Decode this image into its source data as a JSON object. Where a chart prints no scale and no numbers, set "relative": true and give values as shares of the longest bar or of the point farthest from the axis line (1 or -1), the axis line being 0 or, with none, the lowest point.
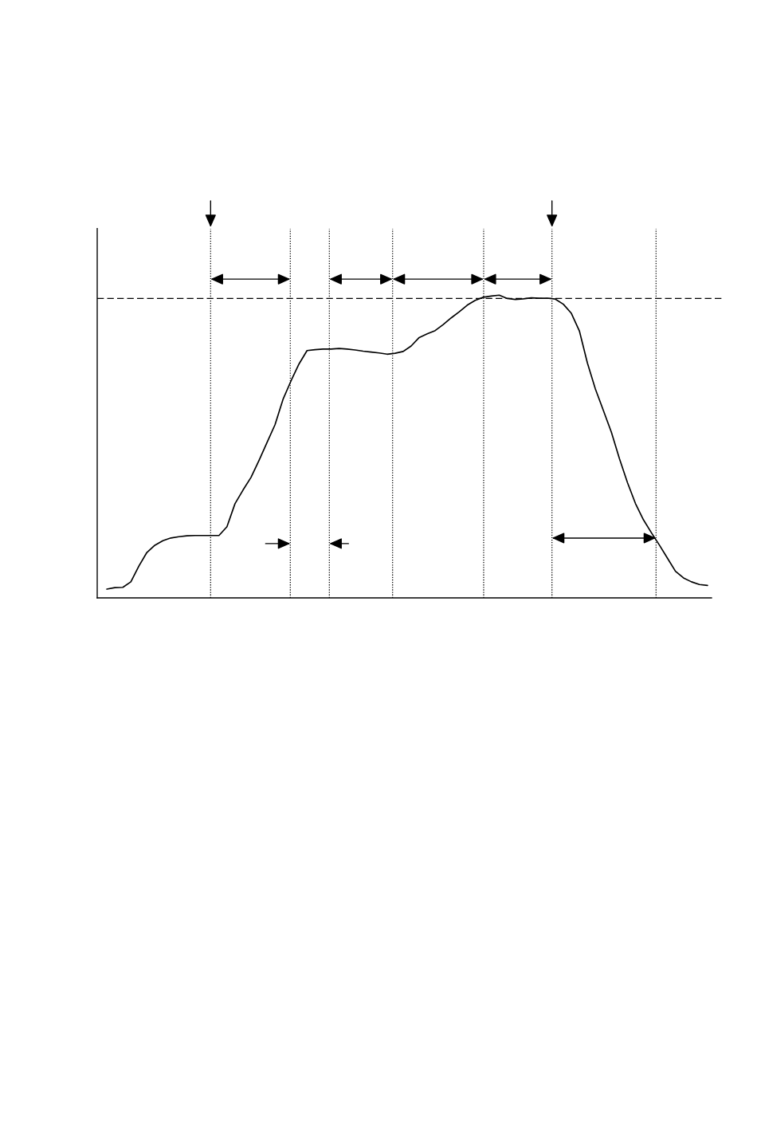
{
  "chart_data": {
    "type": "line",
    "relative": true,
    "grid": "x",
    "categories": [
      null,
      null,
      null,
      null,
      null,
      null,
      null,
      null,
      null,
      null,
      null,
      null,
      null,
      null,
      null,
      null,
      null,
      null,
      null,
      null,
      null,
      null,
      null,
      null,
      null,
      null,
      null,
      null,
      null,
      null,
      null,
      null,
      null,
      null,
      null,
      null,
      null,
      null,
      null,
      null,
      null,
      null,
      null,
      null,
      null,
      null,
      null,
      null,
      null,
      null,
      null,
      null,
      null,
      null,
      null,
      null,
      null,
      null,
      null,
      null,
      null,
      null,
      null,
      null,
      null,
      null,
      null,
      null,
      null,
      null,
      null,
      null,
      null,
      null,
      null,
      null
    ],
    "series": [
      {
        "color": "#000000",
        "values": [
          0.029,
          0.034,
          0.035,
          0.053,
          0.105,
          0.15,
          0.174,
          0.189,
          0.198,
          0.202,
          0.205,
          0.206,
          0.206,
          0.206,
          0.206,
          0.235,
          0.311,
          0.356,
          0.398,
          0.454,
          0.513,
          0.572,
          0.656,
          0.717,
          0.773,
          0.817,
          0.82,
          0.822,
          0.822,
          0.824,
          0.822,
          0.819,
          0.815,
          0.812,
          0.809,
          0.805,
          0.808,
          0.814,
          0.832,
          0.86,
          0.872,
          0.883,
          0.903,
          0.925,
          0.945,
          0.967,
          0.983,
          0.993,
          0.997,
          1.0,
          0.989,
          0.986,
          0.988,
          0.991,
          0.99,
          0.99,
          0.987,
          0.97,
          0.94,
          0.882,
          0.776,
          0.69,
          0.619,
          0.547,
          0.46,
          0.381,
          0.312,
          0.258,
          0.215,
          0.174,
          0.131,
          0.088,
          0.066,
          0.053,
          0.044,
          0.041
        ]
      }
    ],
    "ref_lines": [
      {
        "axis": "y",
        "value": 0.989,
        "line_style": "dashed",
        "color": "#000000"
      }
    ]
  }
}
